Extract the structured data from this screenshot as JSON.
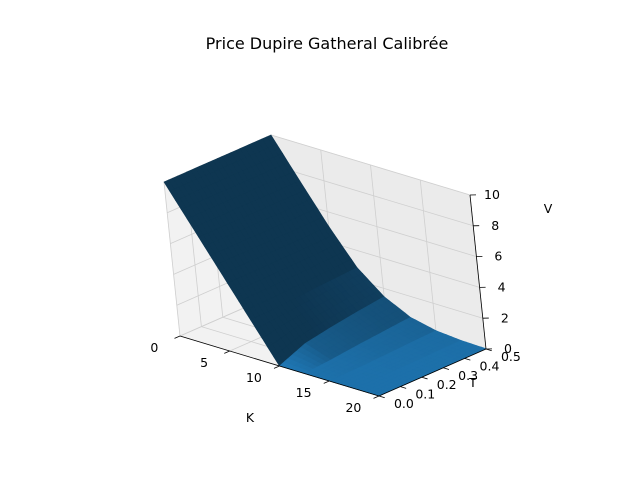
{
  "chart_data": {
    "type": "surface3d",
    "title": "Price Dupire Gatheral Calibrée",
    "xlabel": "K",
    "ylabel": "T",
    "zlabel": "V",
    "xlim": [
      0,
      20
    ],
    "ylim": [
      0,
      0.5
    ],
    "zlim": [
      0,
      10
    ],
    "xticks": [
      "0",
      "5",
      "10",
      "15",
      "20"
    ],
    "yticks": [
      "0.0",
      "0.1",
      "0.2",
      "0.3",
      "0.4",
      "0.5"
    ],
    "zticks": [
      "0",
      "2",
      "4",
      "6",
      "8",
      "10"
    ],
    "grid": true,
    "surface": {
      "color": "#1f77b4",
      "K": [
        0,
        2.5,
        5,
        7.5,
        10,
        12.5,
        15,
        17.5,
        20
      ],
      "T": [
        0,
        0.125,
        0.25,
        0.375,
        0.5
      ],
      "V": [
        [
          10.0,
          10.0,
          10.0,
          10.0,
          10.0
        ],
        [
          7.5,
          7.5,
          7.5,
          7.5,
          7.5
        ],
        [
          5.0,
          5.0,
          5.0,
          5.0,
          5.05
        ],
        [
          2.5,
          2.55,
          2.65,
          2.75,
          2.85
        ],
        [
          0.0,
          0.7,
          1.0,
          1.25,
          1.45
        ],
        [
          0.0,
          0.12,
          0.3,
          0.45,
          0.6
        ],
        [
          0.0,
          0.01,
          0.07,
          0.15,
          0.22
        ],
        [
          0.0,
          0.0,
          0.01,
          0.04,
          0.07
        ],
        [
          0.0,
          0.0,
          0.0,
          0.01,
          0.02
        ]
      ]
    }
  }
}
